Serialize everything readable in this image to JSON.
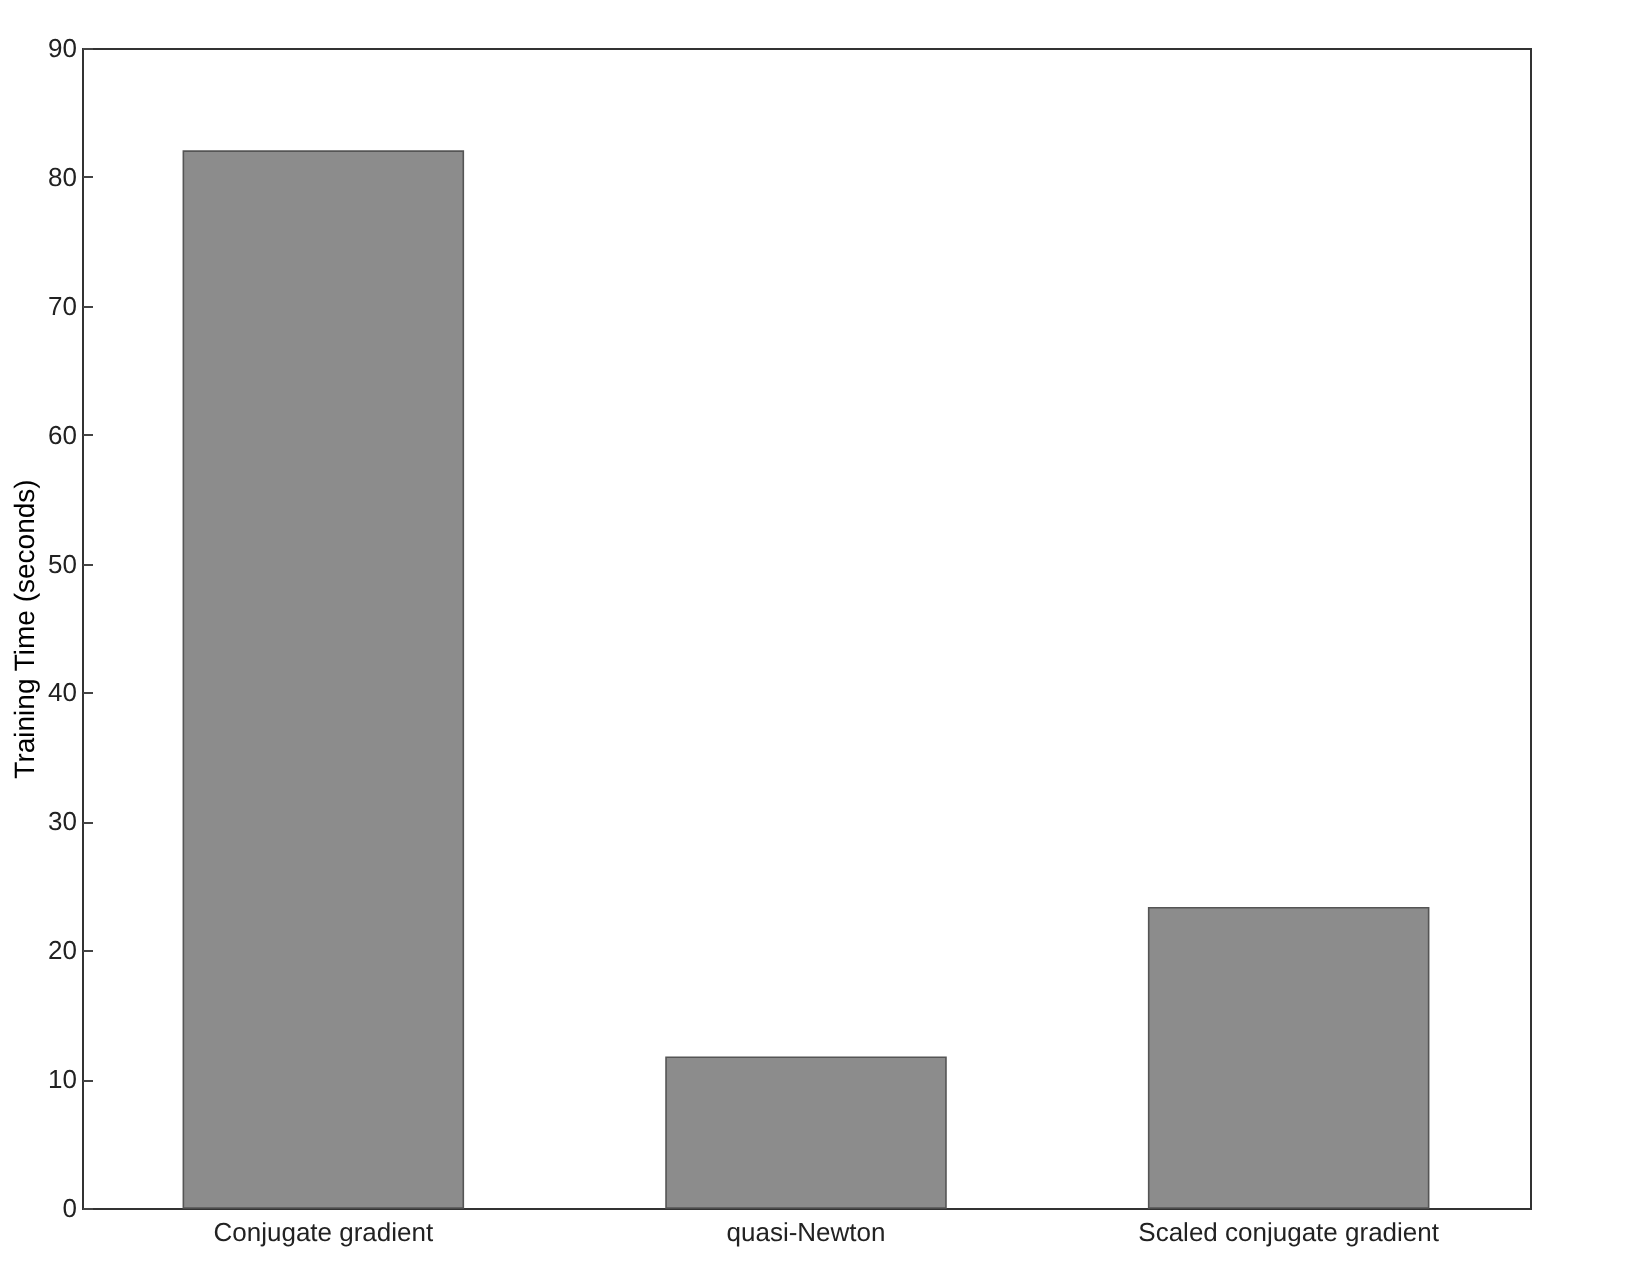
{
  "chart_data": {
    "type": "bar",
    "ylabel": "Training Time (seconds)",
    "categories": [
      "Conjugate gradient",
      "quasi-Newton",
      "Scaled conjugate gradient"
    ],
    "values": [
      82,
      11.7,
      23.3
    ],
    "color": "#8c8c8c",
    "ylim": [
      0,
      90
    ],
    "yticks": [
      0,
      10,
      20,
      30,
      40,
      50,
      60,
      70,
      80,
      90
    ],
    "grid": false
  }
}
